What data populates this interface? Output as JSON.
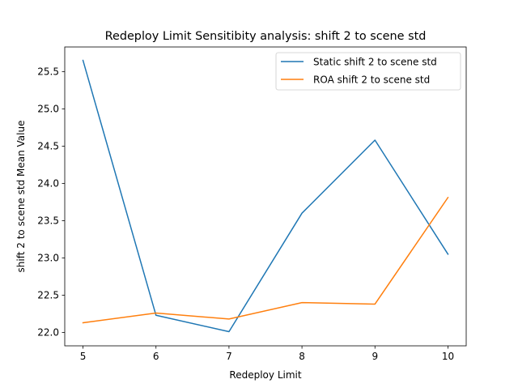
{
  "chart_data": {
    "type": "line",
    "title": "Redeploy Limit Sensitibity analysis: shift 2 to scene std",
    "xlabel": "Redeploy Limit",
    "ylabel": "shift 2 to scene std Mean Value",
    "x": [
      5,
      6,
      7,
      8,
      9,
      10
    ],
    "xlim": [
      4.75,
      10.25
    ],
    "ylim": [
      21.82,
      25.83
    ],
    "xticks": [
      5,
      6,
      7,
      8,
      9,
      10
    ],
    "xtick_labels": [
      "5",
      "6",
      "7",
      "8",
      "9",
      "10"
    ],
    "yticks": [
      22.0,
      22.5,
      23.0,
      23.5,
      24.0,
      24.5,
      25.0,
      25.5
    ],
    "ytick_labels": [
      "22.0",
      "22.5",
      "23.0",
      "23.5",
      "24.0",
      "24.5",
      "25.0",
      "25.5"
    ],
    "grid": false,
    "legend_position": "top-right",
    "series": [
      {
        "name": "Static shift 2 to scene std",
        "color": "#1f77b4",
        "values": [
          25.65,
          22.23,
          22.01,
          23.6,
          24.58,
          23.05
        ]
      },
      {
        "name": "ROA shift 2 to scene std",
        "color": "#ff7f0e",
        "values": [
          22.13,
          22.26,
          22.18,
          22.4,
          22.38,
          23.81
        ]
      }
    ]
  }
}
